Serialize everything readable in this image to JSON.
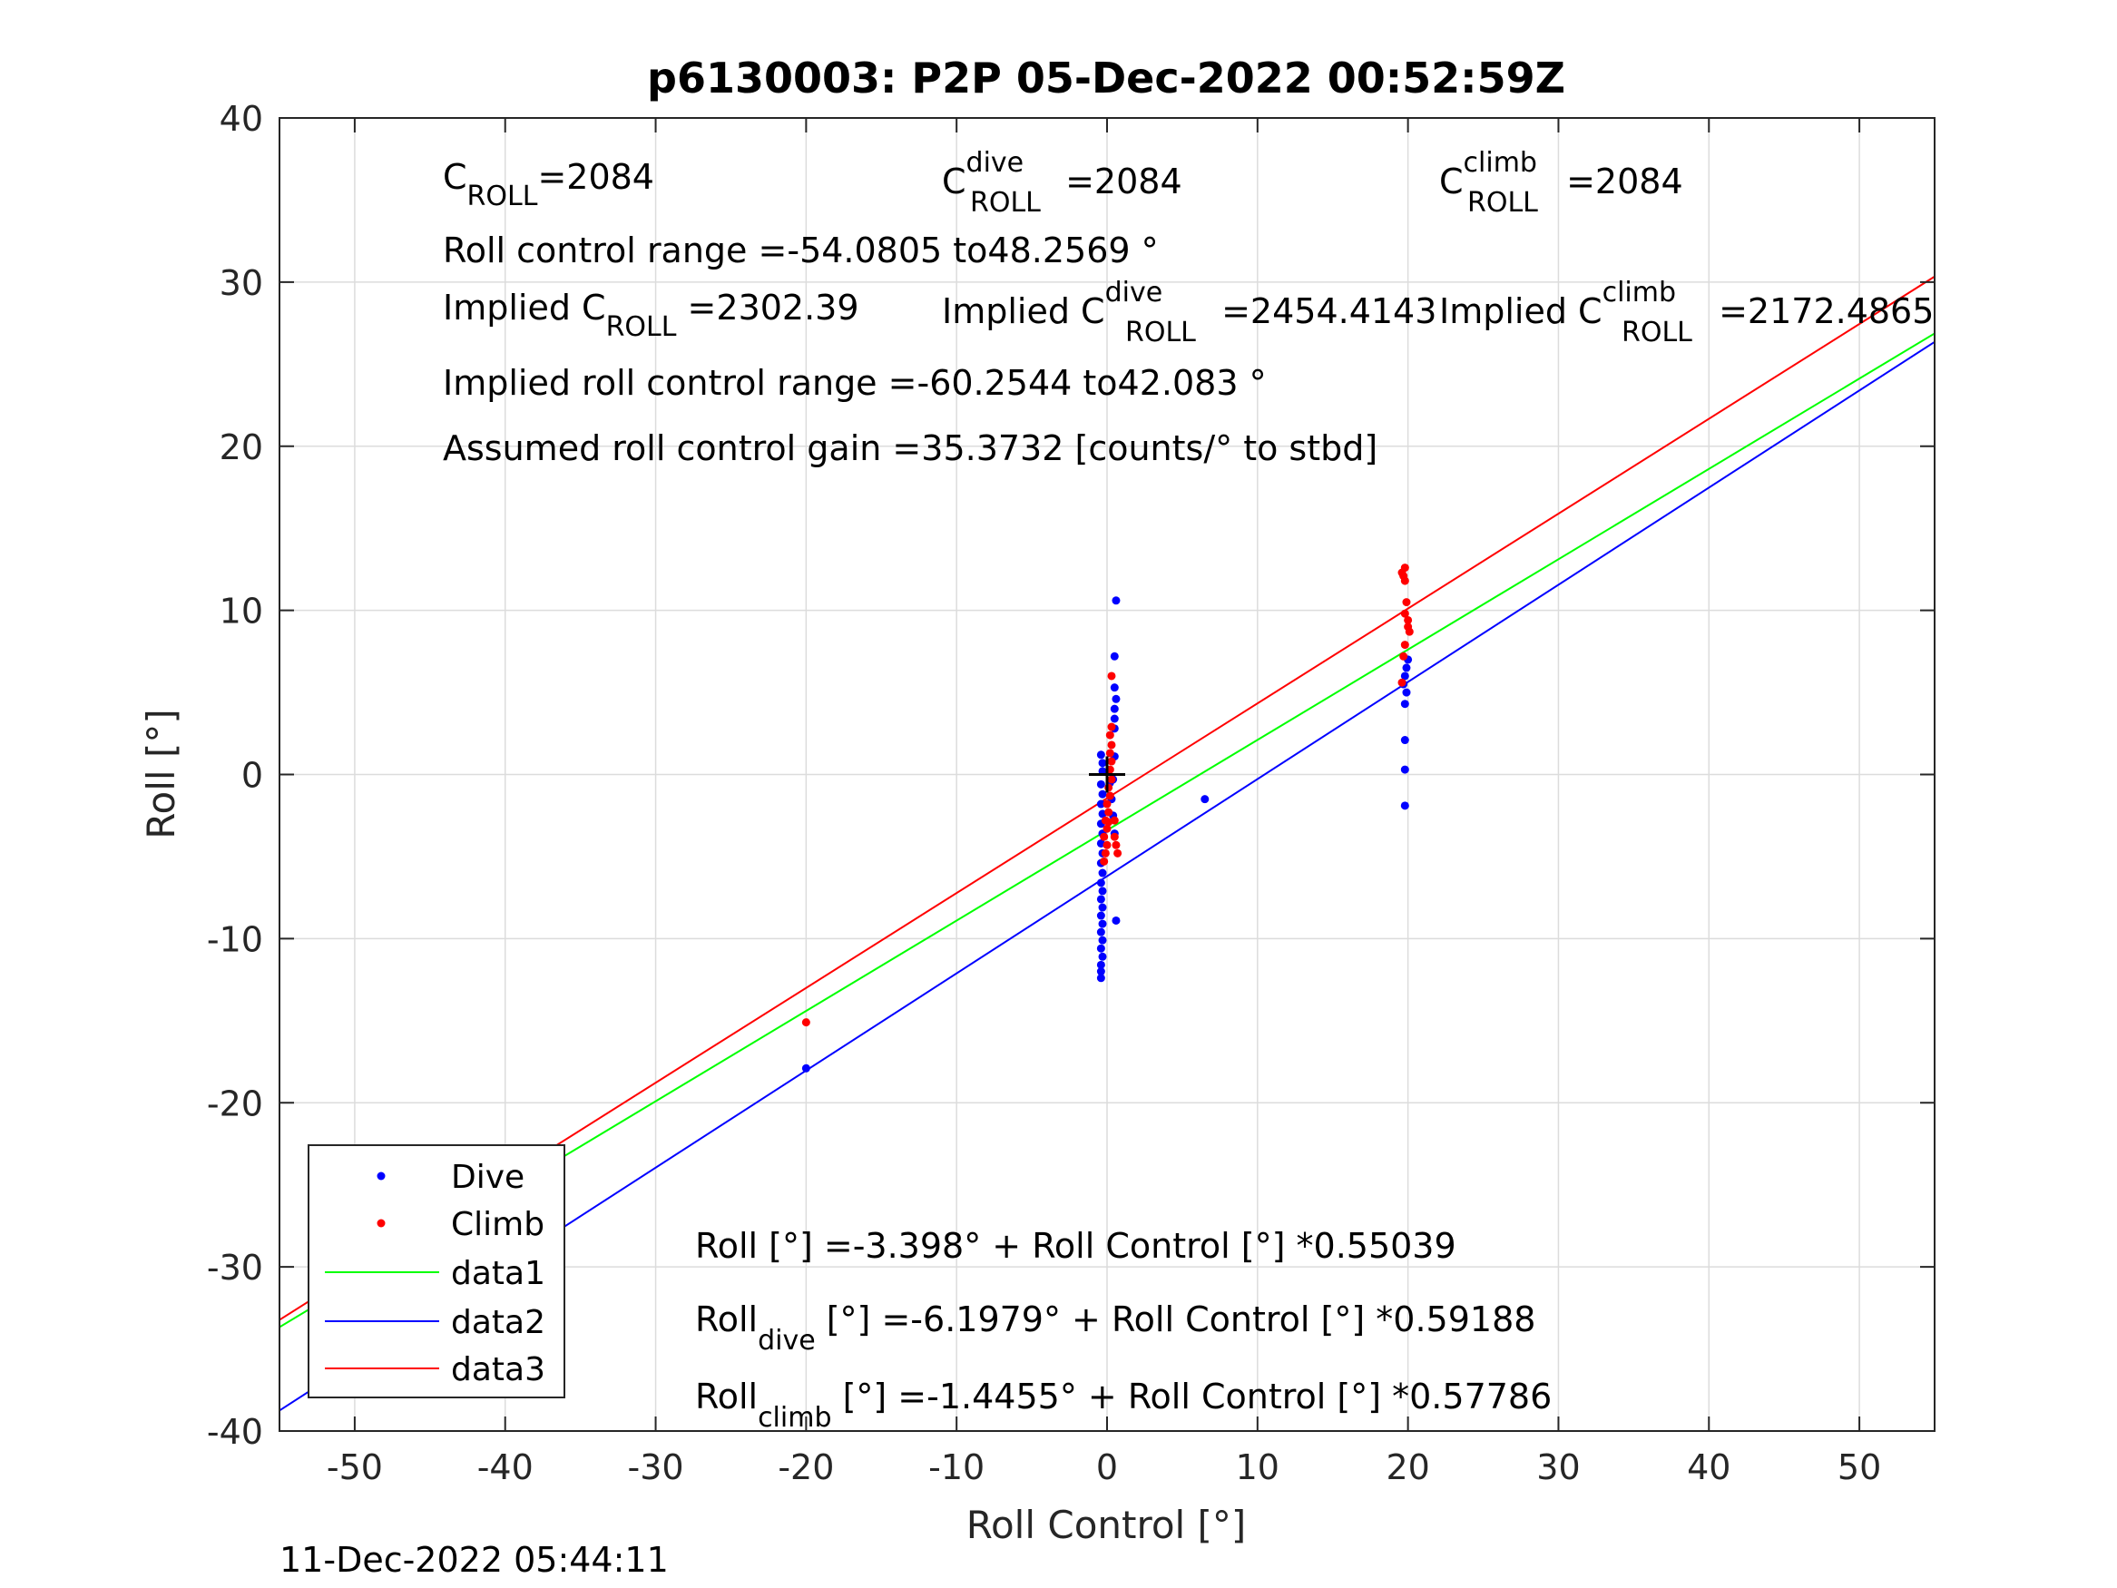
{
  "chart_data": {
    "type": "scatter",
    "title": "p6130003: P2P 05-Dec-2022 00:52:59Z",
    "xlabel": "Roll Control [°]",
    "ylabel": "Roll [°]",
    "xlim": [
      -55,
      55
    ],
    "ylim": [
      -40,
      40
    ],
    "x_ticks": [
      -50,
      -40,
      -30,
      -20,
      -10,
      0,
      10,
      20,
      30,
      40,
      50
    ],
    "y_ticks": [
      -40,
      -30,
      -20,
      -10,
      0,
      10,
      20,
      30,
      40
    ],
    "grid": true,
    "legend_location": "bottom-left",
    "legend": [
      "Dive",
      "Climb",
      "data1",
      "data2",
      "data3"
    ],
    "series": [
      {
        "name": "Dive",
        "kind": "points",
        "color": "#0000ff",
        "points": [
          [
            -20,
            -17.9
          ],
          [
            -0.4,
            -12.4
          ],
          [
            -0.4,
            -12.0
          ],
          [
            -0.4,
            -11.6
          ],
          [
            -0.3,
            -11.1
          ],
          [
            -0.4,
            -10.6
          ],
          [
            -0.3,
            -10.1
          ],
          [
            -0.4,
            -9.6
          ],
          [
            -0.3,
            -9.1
          ],
          [
            -0.4,
            -8.6
          ],
          [
            -0.3,
            -8.1
          ],
          [
            -0.4,
            -7.6
          ],
          [
            -0.3,
            -7.1
          ],
          [
            -0.4,
            -6.6
          ],
          [
            -0.3,
            -6.0
          ],
          [
            -0.4,
            -5.4
          ],
          [
            -0.3,
            -4.8
          ],
          [
            -0.4,
            -4.2
          ],
          [
            -0.3,
            -3.6
          ],
          [
            -0.4,
            -3.0
          ],
          [
            -0.3,
            -2.4
          ],
          [
            -0.4,
            -1.8
          ],
          [
            -0.3,
            -1.2
          ],
          [
            -0.4,
            -0.6
          ],
          [
            -0.3,
            0.2
          ],
          [
            -0.3,
            0.7
          ],
          [
            -0.4,
            1.2
          ],
          [
            0.2,
            -0.5
          ],
          [
            0.3,
            -1.5
          ],
          [
            0.4,
            -2.5
          ],
          [
            0.5,
            1.1
          ],
          [
            0.5,
            2.8
          ],
          [
            0.5,
            3.4
          ],
          [
            0.5,
            4.0
          ],
          [
            0.6,
            4.6
          ],
          [
            0.5,
            5.3
          ],
          [
            0.5,
            7.2
          ],
          [
            0.6,
            10.6
          ],
          [
            0.6,
            -8.9
          ],
          [
            0.5,
            -3.6
          ],
          [
            0.4,
            -0.3
          ],
          [
            6.5,
            -1.5
          ],
          [
            19.7,
            5.5
          ],
          [
            19.8,
            6.0
          ],
          [
            19.9,
            6.5
          ],
          [
            20.0,
            7.0
          ],
          [
            19.8,
            4.3
          ],
          [
            19.9,
            5.0
          ],
          [
            19.8,
            2.1
          ],
          [
            19.8,
            0.3
          ],
          [
            19.8,
            -1.9
          ]
        ]
      },
      {
        "name": "Climb",
        "kind": "points",
        "color": "#ff0000",
        "points": [
          [
            -20,
            -15.1
          ],
          [
            -0.2,
            -5.3
          ],
          [
            -0.1,
            -4.8
          ],
          [
            0.0,
            -4.3
          ],
          [
            -0.2,
            -3.8
          ],
          [
            0.0,
            -3.3
          ],
          [
            -0.1,
            -2.8
          ],
          [
            0.1,
            -2.3
          ],
          [
            0.0,
            -1.8
          ],
          [
            0.2,
            -1.3
          ],
          [
            0.1,
            -0.8
          ],
          [
            0.3,
            -0.3
          ],
          [
            0.2,
            0.3
          ],
          [
            0.3,
            0.8
          ],
          [
            0.2,
            1.3
          ],
          [
            0.3,
            1.8
          ],
          [
            0.2,
            2.4
          ],
          [
            0.3,
            2.9
          ],
          [
            0.3,
            6.0
          ],
          [
            0.6,
            -4.3
          ],
          [
            0.7,
            -4.8
          ],
          [
            0.5,
            -2.8
          ],
          [
            0.5,
            -3.8
          ],
          [
            0.1,
            -2.9
          ],
          [
            19.6,
            12.3
          ],
          [
            19.8,
            12.6
          ],
          [
            19.8,
            11.8
          ],
          [
            19.7,
            12.1
          ],
          [
            19.9,
            10.5
          ],
          [
            19.8,
            9.8
          ],
          [
            20.0,
            9.4
          ],
          [
            20.0,
            9.0
          ],
          [
            20.1,
            8.7
          ],
          [
            19.8,
            7.9
          ],
          [
            19.7,
            7.2
          ],
          [
            19.6,
            5.6
          ]
        ]
      },
      {
        "name": "data1",
        "kind": "line",
        "color": "#00ff00",
        "intercept": -3.398,
        "slope": 0.55039
      },
      {
        "name": "data2",
        "kind": "line",
        "color": "#0000ff",
        "intercept": -6.1979,
        "slope": 0.59188
      },
      {
        "name": "data3",
        "kind": "line",
        "color": "#ff0000",
        "intercept": -1.4455,
        "slope": 0.57786
      }
    ],
    "marker": {
      "x": 0,
      "y": 0,
      "color": "#000000",
      "symbol": "+"
    },
    "annotations": {
      "c_roll": {
        "prefix": "C",
        "sub": "ROLL",
        "value": "=2084"
      },
      "c_roll_dive": {
        "prefix": "C",
        "sup": "dive",
        "sub": "ROLL",
        "value": " =2084"
      },
      "c_roll_climb": {
        "prefix": "C",
        "sup": "climb",
        "sub": "ROLL",
        "value": " =2084"
      },
      "roll_control_range": "Roll control range =-54.0805 to48.2569 °",
      "implied_c_roll": {
        "prefix": "Implied C",
        "sub": "ROLL",
        "value": " =2302.39"
      },
      "implied_c_roll_dive": {
        "prefix": "Implied C",
        "sup": "dive",
        "sub": "ROLL",
        "value": " =2454.4143"
      },
      "implied_c_roll_climb": {
        "prefix": "Implied C",
        "sup": "climb",
        "sub": "ROLL",
        "value": " =2172.4865"
      },
      "implied_range": "Implied roll control range =-60.2544 to42.083 °",
      "gain": "Assumed roll control gain =35.3732 [counts/° to stbd]",
      "fit_all": "Roll [°] =-3.398° + Roll Control [°] *0.55039",
      "fit_dive": {
        "prefix": "Roll",
        "sub": "dive",
        "value": " [°] =-6.1979° + Roll Control [°] *0.59188"
      },
      "fit_climb": {
        "prefix": "Roll",
        "sub": "climb",
        "value": " [°] =-1.4455° + Roll Control [°] *0.57786"
      }
    },
    "timestamp": "11-Dec-2022 05:44:11"
  }
}
